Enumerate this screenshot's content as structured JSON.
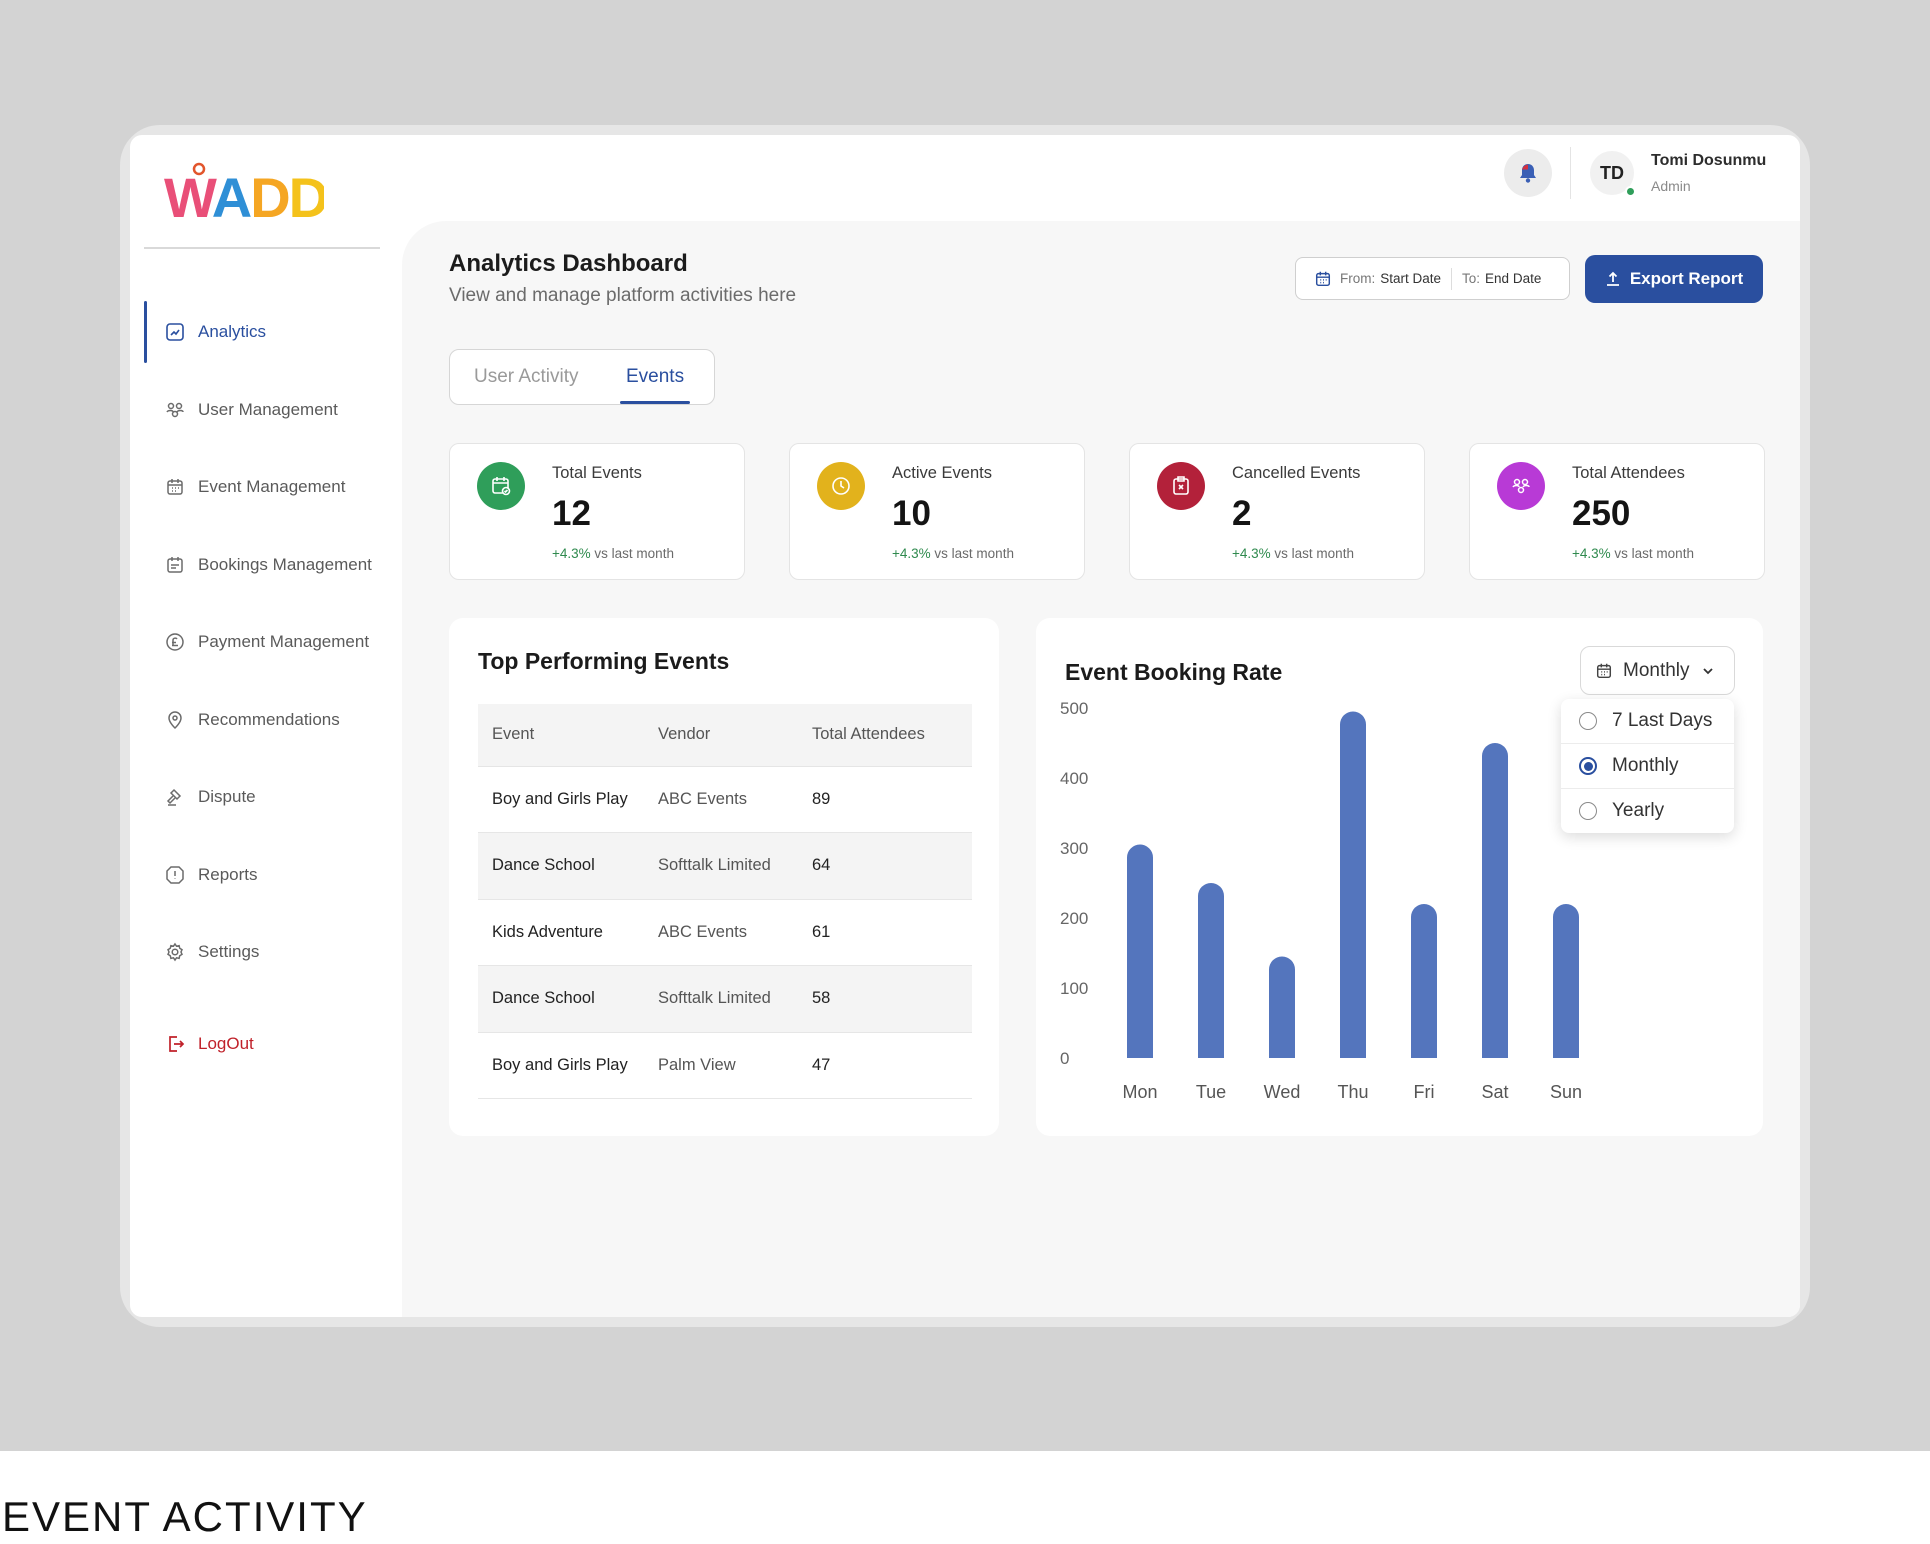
{
  "caption": "EVENT ACTIVITY",
  "brand": {
    "logo_text": "WADDLE",
    "logo_colors": [
      "#e94f78",
      "#2f8fd6",
      "#f5a623",
      "#f4c21b",
      "#3aa35b",
      "#e94f78"
    ],
    "accent": "#2a4f9f"
  },
  "sidebar": {
    "items": [
      {
        "label": "Analytics",
        "icon": "analytics-icon",
        "active": true
      },
      {
        "label": "User Management",
        "icon": "users-icon"
      },
      {
        "label": "Event Management",
        "icon": "calendar-icon"
      },
      {
        "label": "Bookings Management",
        "icon": "bookings-icon"
      },
      {
        "label": "Payment Management",
        "icon": "pound-icon"
      },
      {
        "label": "Recommendations",
        "icon": "location-pin-icon"
      },
      {
        "label": "Dispute",
        "icon": "hammer-icon"
      },
      {
        "label": "Reports",
        "icon": "report-icon"
      },
      {
        "label": "Settings",
        "icon": "gear-icon"
      }
    ],
    "logout_label": "LogOut"
  },
  "header": {
    "notification_icon": "bell-icon",
    "user": {
      "initials": "TD",
      "name": "Tomi Dosunmu",
      "role": "Admin"
    }
  },
  "page": {
    "title": "Analytics Dashboard",
    "subtitle": "View and manage platform activities here",
    "date_range": {
      "from_label": "From:",
      "from_value": "Start Date",
      "to_label": "To:",
      "to_value": "End Date"
    },
    "export_label": "Export Report"
  },
  "tabs": [
    {
      "label": "User Activity",
      "active": false
    },
    {
      "label": "Events",
      "active": true
    }
  ],
  "stats": [
    {
      "label": "Total Events",
      "value": "12",
      "trend_pct": "+4.3%",
      "trend_text": "vs last month",
      "color": "#2f9e5a",
      "icon": "calendar-check-icon"
    },
    {
      "label": "Active Events",
      "value": "10",
      "trend_pct": "+4.3%",
      "trend_text": "vs last month",
      "color": "#e2b21c",
      "icon": "clock-icon"
    },
    {
      "label": "Cancelled Events",
      "value": "2",
      "trend_pct": "+4.3%",
      "trend_text": "vs last month",
      "color": "#b3213a",
      "icon": "cancel-clipboard-icon"
    },
    {
      "label": "Total Attendees",
      "value": "250",
      "trend_pct": "+4.3%",
      "trend_text": "vs last month",
      "color": "#b83ad6",
      "icon": "attendees-icon"
    }
  ],
  "top_events": {
    "title": "Top Performing Events",
    "columns": [
      "Event",
      "Vendor",
      "Total Attendees"
    ],
    "rows": [
      {
        "event": "Boy and Girls Play",
        "vendor": "ABC Events",
        "attendees": "89"
      },
      {
        "event": "Dance School",
        "vendor": "Softtalk Limited",
        "attendees": "64"
      },
      {
        "event": "Kids Adventure",
        "vendor": "ABC Events",
        "attendees": "61"
      },
      {
        "event": "Dance School",
        "vendor": "Softtalk Limited",
        "attendees": "58"
      },
      {
        "event": "Boy and Girls Play",
        "vendor": "Palm View",
        "attendees": "47"
      }
    ]
  },
  "booking_rate": {
    "title": "Event Booking Rate",
    "selected_period": "Monthly",
    "options": [
      "7 Last Days",
      "Monthly",
      "Yearly"
    ]
  },
  "chart_data": {
    "type": "bar",
    "title": "Event Booking Rate",
    "categories": [
      "Mon",
      "Tue",
      "Wed",
      "Thu",
      "Fri",
      "Sat",
      "Sun"
    ],
    "values": [
      305,
      250,
      145,
      495,
      220,
      450,
      220
    ],
    "yticks": [
      0,
      100,
      200,
      300,
      400,
      500
    ],
    "ylim": [
      0,
      500
    ],
    "grid": false,
    "bar_color": "#5475bd"
  }
}
